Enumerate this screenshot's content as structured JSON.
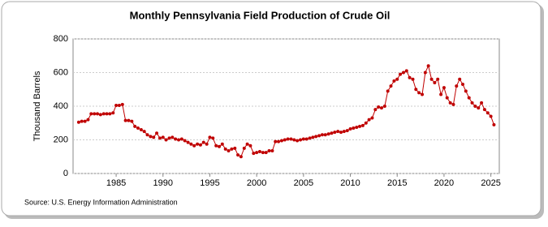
{
  "chart_data": {
    "type": "line",
    "title": "Monthly Pennsylvania Field Production of Crude Oil",
    "ylabel": "Thousand Barrels",
    "source": "Source: U.S. Energy Information Administration",
    "color": "#c00000",
    "grid": true,
    "xlim": [
      1980.4,
      2025.9
    ],
    "xticks": [
      1985,
      1990,
      1995,
      2000,
      2005,
      2010,
      2015,
      2020,
      2025
    ],
    "ylim": [
      0,
      800
    ],
    "yticks": [
      0,
      200,
      400,
      600,
      800
    ],
    "x": [
      1981,
      1981.33,
      1981.67,
      1982,
      1982.33,
      1982.67,
      1983,
      1983.33,
      1983.67,
      1984,
      1984.33,
      1984.67,
      1985,
      1985.33,
      1985.67,
      1986,
      1986.33,
      1986.67,
      1987,
      1987.33,
      1987.67,
      1988,
      1988.33,
      1988.67,
      1989,
      1989.33,
      1989.67,
      1990,
      1990.33,
      1990.67,
      1991,
      1991.33,
      1991.67,
      1992,
      1992.33,
      1992.67,
      1993,
      1993.33,
      1993.67,
      1994,
      1994.33,
      1994.67,
      1995,
      1995.33,
      1995.67,
      1996,
      1996.33,
      1996.67,
      1997,
      1997.33,
      1997.67,
      1998,
      1998.33,
      1998.67,
      1999,
      1999.33,
      1999.67,
      2000,
      2000.33,
      2000.67,
      2001,
      2001.33,
      2001.67,
      2002,
      2002.33,
      2002.67,
      2003,
      2003.33,
      2003.67,
      2004,
      2004.33,
      2004.67,
      2005,
      2005.33,
      2005.67,
      2006,
      2006.33,
      2006.67,
      2007,
      2007.33,
      2007.67,
      2008,
      2008.33,
      2008.67,
      2009,
      2009.33,
      2009.67,
      2010,
      2010.33,
      2010.67,
      2011,
      2011.33,
      2011.67,
      2012,
      2012.33,
      2012.67,
      2013,
      2013.33,
      2013.67,
      2014,
      2014.33,
      2014.67,
      2015,
      2015.33,
      2015.67,
      2016,
      2016.33,
      2016.67,
      2017,
      2017.33,
      2017.67,
      2018,
      2018.33,
      2018.67,
      2019,
      2019.33,
      2019.67,
      2020,
      2020.33,
      2020.67,
      2021,
      2021.33,
      2021.67,
      2022,
      2022.33,
      2022.67,
      2023,
      2023.33,
      2023.67,
      2024,
      2024.33,
      2024.67,
      2025,
      2025.33
    ],
    "values": [
      305,
      310,
      310,
      320,
      355,
      355,
      355,
      350,
      355,
      355,
      355,
      360,
      405,
      405,
      410,
      315,
      315,
      310,
      280,
      270,
      260,
      250,
      230,
      220,
      215,
      240,
      210,
      215,
      200,
      210,
      215,
      205,
      200,
      205,
      195,
      185,
      175,
      165,
      175,
      170,
      185,
      175,
      215,
      210,
      165,
      160,
      175,
      145,
      135,
      145,
      150,
      110,
      100,
      150,
      175,
      165,
      120,
      125,
      130,
      125,
      125,
      135,
      135,
      190,
      190,
      195,
      200,
      205,
      205,
      200,
      195,
      200,
      205,
      205,
      210,
      215,
      220,
      225,
      230,
      230,
      235,
      240,
      245,
      250,
      245,
      250,
      255,
      265,
      270,
      275,
      280,
      285,
      300,
      320,
      330,
      380,
      395,
      390,
      400,
      490,
      520,
      550,
      560,
      590,
      600,
      610,
      570,
      560,
      500,
      480,
      470,
      600,
      640,
      560,
      540,
      560,
      470,
      510,
      450,
      420,
      410,
      520,
      560,
      530,
      490,
      450,
      420,
      400,
      390,
      420,
      380,
      360,
      340,
      290
    ]
  }
}
